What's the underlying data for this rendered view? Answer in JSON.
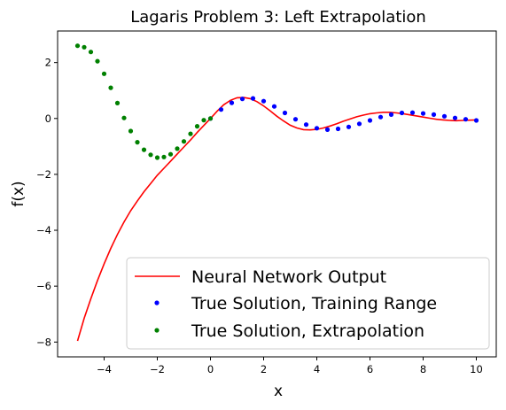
{
  "chart_data": {
    "type": "line",
    "title": "Lagaris Problem 3: Left Extrapolation",
    "xlabel": "x",
    "ylabel": "f(x)",
    "xlim": [
      -5.75,
      10.75
    ],
    "ylim": [
      -8.53,
      3.13
    ],
    "xticks": [
      -4,
      -2,
      0,
      2,
      4,
      6,
      8,
      10
    ],
    "xtick_labels": [
      "−4",
      "−2",
      "0",
      "2",
      "4",
      "6",
      "8",
      "10"
    ],
    "yticks": [
      -8,
      -6,
      -4,
      -2,
      0,
      2
    ],
    "ytick_labels": [
      "−8",
      "−6",
      "−4",
      "−2",
      "0",
      "2"
    ],
    "grid": false,
    "legend_position": "lower-right",
    "series": [
      {
        "name": "Neural Network Output",
        "style": "line",
        "color": "#ff0000",
        "x": [
          -5.0,
          -4.75,
          -4.5,
          -4.25,
          -4.0,
          -3.75,
          -3.5,
          -3.25,
          -3.0,
          -2.75,
          -2.5,
          -2.25,
          -2.0,
          -1.75,
          -1.5,
          -1.25,
          -1.0,
          -0.75,
          -0.5,
          -0.25,
          0.0,
          0.25,
          0.5,
          0.75,
          1.0,
          1.25,
          1.5,
          1.75,
          2.0,
          2.25,
          2.5,
          2.75,
          3.0,
          3.25,
          3.5,
          3.75,
          4.0,
          4.25,
          4.5,
          4.75,
          5.0,
          5.25,
          5.5,
          5.75,
          6.0,
          6.25,
          6.5,
          6.75,
          7.0,
          7.25,
          7.5,
          7.75,
          8.0,
          8.25,
          8.5,
          8.75,
          9.0,
          9.25,
          9.5,
          9.75,
          10.0
        ],
        "y": [
          -7.96,
          -7.15,
          -6.45,
          -5.8,
          -5.2,
          -4.65,
          -4.15,
          -3.7,
          -3.3,
          -2.95,
          -2.62,
          -2.33,
          -2.03,
          -1.78,
          -1.53,
          -1.27,
          -1.02,
          -0.77,
          -0.5,
          -0.25,
          0.0,
          0.26,
          0.49,
          0.65,
          0.74,
          0.75,
          0.71,
          0.6,
          0.45,
          0.27,
          0.08,
          -0.09,
          -0.24,
          -0.34,
          -0.4,
          -0.41,
          -0.39,
          -0.34,
          -0.27,
          -0.19,
          -0.1,
          -0.02,
          0.06,
          0.12,
          0.17,
          0.2,
          0.22,
          0.22,
          0.2,
          0.17,
          0.13,
          0.09,
          0.05,
          0.01,
          -0.03,
          -0.05,
          -0.07,
          -0.08,
          -0.07,
          -0.06,
          -0.05
        ]
      },
      {
        "name": "True Solution, Training Range",
        "style": "points",
        "color": "#0000ff",
        "x": [
          0.0,
          0.4,
          0.8,
          1.2,
          1.6,
          2.0,
          2.4,
          2.8,
          3.2,
          3.6,
          4.0,
          4.4,
          4.8,
          5.2,
          5.6,
          6.0,
          6.4,
          6.8,
          7.2,
          7.6,
          8.0,
          8.4,
          8.8,
          9.2,
          9.6,
          10.0
        ],
        "y": [
          0.0,
          0.32,
          0.56,
          0.7,
          0.72,
          0.62,
          0.43,
          0.2,
          -0.03,
          -0.22,
          -0.35,
          -0.4,
          -0.37,
          -0.3,
          -0.19,
          -0.07,
          0.05,
          0.14,
          0.2,
          0.21,
          0.18,
          0.14,
          0.08,
          0.02,
          -0.03,
          -0.07
        ]
      },
      {
        "name": "True Solution, Extrapolation",
        "style": "points",
        "color": "#008000",
        "x": [
          -5.0,
          -4.75,
          -4.5,
          -4.25,
          -4.0,
          -3.75,
          -3.5,
          -3.25,
          -3.0,
          -2.75,
          -2.5,
          -2.25,
          -2.0,
          -1.75,
          -1.5,
          -1.25,
          -1.0,
          -0.75,
          -0.5,
          -0.25,
          0.0
        ],
        "y": [
          2.6,
          2.55,
          2.38,
          2.05,
          1.6,
          1.1,
          0.55,
          0.02,
          -0.45,
          -0.85,
          -1.12,
          -1.3,
          -1.4,
          -1.38,
          -1.28,
          -1.08,
          -0.82,
          -0.55,
          -0.28,
          -0.06,
          0.0
        ]
      }
    ]
  }
}
